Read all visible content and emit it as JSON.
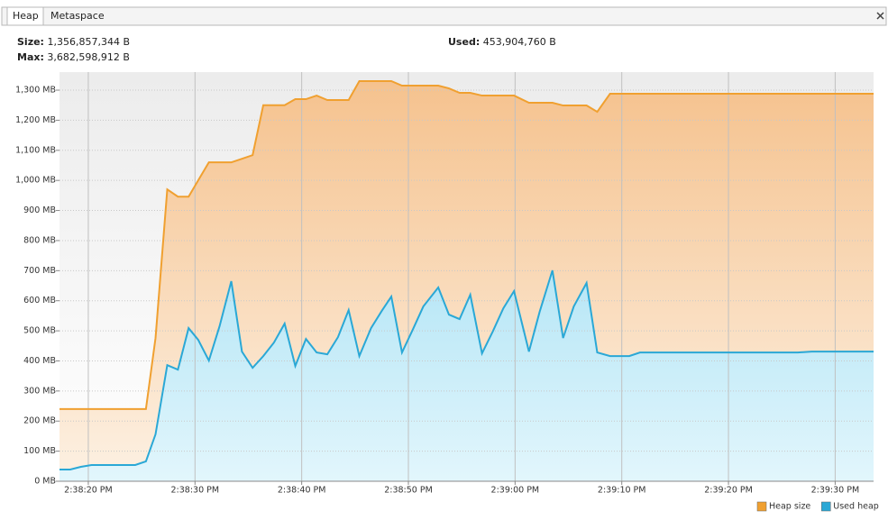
{
  "tabs": [
    "Heap",
    "Metaspace"
  ],
  "info": {
    "size": {
      "label": "Size:",
      "value": "1,356,857,344 B"
    },
    "max": {
      "label": "Max:",
      "value": "3,682,598,912 B"
    },
    "used": {
      "label": "Used:",
      "value": "453,904,760 B"
    }
  },
  "chart_data": {
    "type": "area",
    "x": [
      52697.3,
      52698.3,
      52699.3,
      52700.3,
      52701.4,
      52704.4,
      52705.4,
      52706.3,
      52707.4,
      52708.4,
      52709.4,
      52710.3,
      52711.3,
      52712.3,
      52713.4,
      52714.4,
      52715.4,
      52716.4,
      52717.4,
      52718.4,
      52719.4,
      52720.4,
      52721.4,
      52722.4,
      52723.4,
      52724.4,
      52725.4,
      52726.5,
      52727.5,
      52728.4,
      52729.4,
      52730.4,
      52731.4,
      52732.8,
      52733.8,
      52734.8,
      52735.8,
      52736.9,
      52737.9,
      52738.9,
      52739.9,
      52741.3,
      52742.3,
      52743.5,
      52744.5,
      52745.5,
      52746.7,
      52747.7,
      52748.9,
      52750.7,
      52751.7,
      52766.5,
      52767.8,
      52773.6
    ],
    "series": [
      {
        "name": "Heap size",
        "color": "#f0a030",
        "fill": [
          "#f5c28e",
          "#fdf1e3"
        ],
        "values": [
          240,
          240,
          240,
          240,
          240,
          240,
          240,
          476,
          970,
          946,
          946,
          1000,
          1060,
          1060,
          1060,
          1072,
          1084,
          1250,
          1250,
          1250,
          1270,
          1270,
          1282,
          1267,
          1267,
          1267,
          1330,
          1330,
          1330,
          1330,
          1315,
          1315,
          1315,
          1315,
          1306,
          1291,
          1291,
          1282,
          1282,
          1282,
          1282,
          1258,
          1258,
          1258,
          1249,
          1249,
          1249,
          1228,
          1288,
          1288,
          1288,
          1288,
          1288,
          1288
        ]
      },
      {
        "name": "Used heap",
        "color": "#2aa8d6",
        "fill": [
          "#b6e6f6",
          "#e2f6fc"
        ],
        "values": [
          39,
          39,
          48,
          54,
          54,
          54,
          66,
          156,
          386,
          371,
          509,
          470,
          401,
          515,
          665,
          431,
          377,
          416,
          461,
          524,
          383,
          473,
          428,
          422,
          479,
          569,
          416,
          509,
          566,
          614,
          428,
          503,
          581,
          644,
          554,
          539,
          620,
          425,
          497,
          575,
          632,
          431,
          563,
          701,
          476,
          581,
          659,
          428,
          416,
          416,
          428,
          428,
          431,
          431
        ]
      }
    ],
    "xlim": [
      52697.3,
      52773.6
    ],
    "xticks": [
      {
        "value": 52700,
        "label": "2:38:20 PM"
      },
      {
        "value": 52710,
        "label": "2:38:30 PM"
      },
      {
        "value": 52720,
        "label": "2:38:40 PM"
      },
      {
        "value": 52730,
        "label": "2:38:50 PM"
      },
      {
        "value": 52740,
        "label": "2:39:00 PM"
      },
      {
        "value": 52750,
        "label": "2:39:10 PM"
      },
      {
        "value": 52760,
        "label": "2:39:20 PM"
      },
      {
        "value": 52770,
        "label": "2:39:30 PM"
      }
    ],
    "ylim": [
      0,
      1360
    ],
    "yticks": [
      {
        "value": 0,
        "label": "0 MB"
      },
      {
        "value": 100,
        "label": "100 MB"
      },
      {
        "value": 200,
        "label": "200 MB"
      },
      {
        "value": 300,
        "label": "300 MB"
      },
      {
        "value": 400,
        "label": "400 MB"
      },
      {
        "value": 500,
        "label": "500 MB"
      },
      {
        "value": 600,
        "label": "600 MB"
      },
      {
        "value": 700,
        "label": "700 MB"
      },
      {
        "value": 800,
        "label": "800 MB"
      },
      {
        "value": 900,
        "label": "900 MB"
      },
      {
        "value": 1000,
        "label": "1,000 MB"
      },
      {
        "value": 1100,
        "label": "1,100 MB"
      },
      {
        "value": 1200,
        "label": "1,200 MB"
      },
      {
        "value": 1300,
        "label": "1,300 MB"
      }
    ],
    "grid": true,
    "legend": "bottom-right"
  }
}
